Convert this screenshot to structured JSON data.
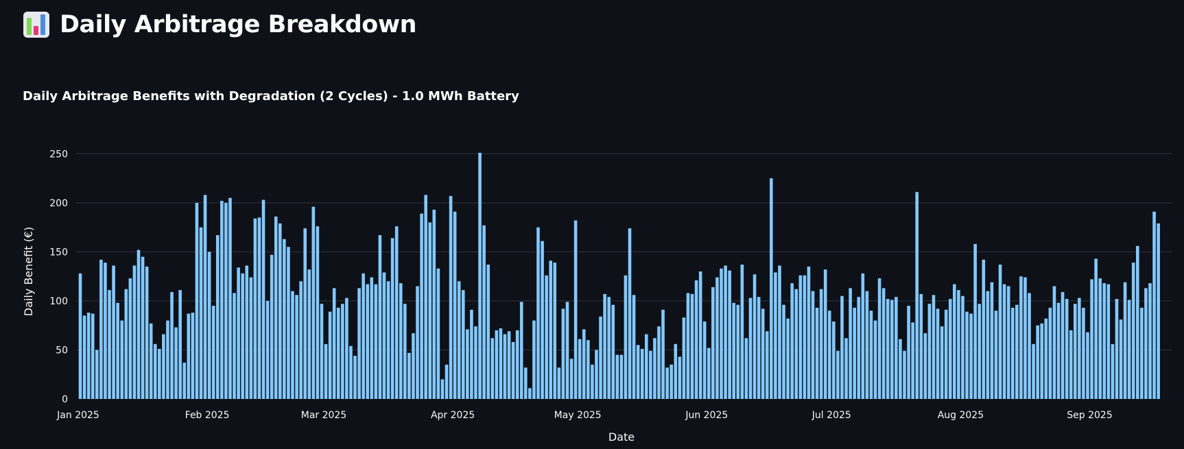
{
  "page": {
    "title": "Daily Arbitrage Breakdown",
    "icon": "bar-chart-icon"
  },
  "colors": {
    "background": "#0e1117",
    "bar": "#83c9ff",
    "grid": "#31333f",
    "text": "#fafafa"
  },
  "chart_data": {
    "type": "bar",
    "title": "Daily Arbitrage Benefits with Degradation (2 Cycles) - 1.0 MWh Battery",
    "xlabel": "Date",
    "ylabel": "Daily Benefit (€)",
    "x_start": "2025-01-01",
    "x_ticks": [
      "Jan 2025",
      "Feb 2025",
      "Mar 2025",
      "Apr 2025",
      "May 2025",
      "Jun 2025",
      "Jul 2025",
      "Aug 2025",
      "Sep 2025"
    ],
    "y_ticks": [
      0,
      50,
      100,
      150,
      200,
      250
    ],
    "ylim": [
      0,
      260
    ],
    "grid": true,
    "legend": "none",
    "values": [
      128,
      85,
      88,
      87,
      50,
      142,
      139,
      111,
      136,
      98,
      80,
      112,
      123,
      136,
      152,
      145,
      135,
      77,
      56,
      51,
      66,
      80,
      109,
      73,
      111,
      37,
      87,
      88,
      200,
      175,
      208,
      150,
      95,
      167,
      202,
      200,
      205,
      108,
      134,
      128,
      136,
      124,
      184,
      185,
      203,
      100,
      147,
      186,
      179,
      163,
      155,
      110,
      106,
      120,
      174,
      132,
      196,
      176,
      97,
      56,
      89,
      113,
      93,
      97,
      103,
      54,
      44,
      113,
      128,
      117,
      124,
      117,
      167,
      129,
      120,
      164,
      176,
      118,
      97,
      47,
      67,
      115,
      189,
      208,
      180,
      193,
      133,
      20,
      35,
      207,
      191,
      120,
      111,
      71,
      91,
      74,
      251,
      177,
      137,
      62,
      70,
      72,
      66,
      69,
      58,
      70,
      99,
      32,
      11,
      80,
      175,
      161,
      126,
      141,
      139,
      32,
      92,
      99,
      41,
      182,
      61,
      71,
      60,
      35,
      50,
      84,
      107,
      104,
      96,
      45,
      45,
      126,
      174,
      106,
      55,
      51,
      66,
      49,
      62,
      74,
      91,
      32,
      35,
      56,
      43,
      83,
      108,
      107,
      121,
      130,
      79,
      52,
      114,
      124,
      133,
      136,
      131,
      98,
      96,
      137,
      62,
      103,
      127,
      104,
      92,
      69,
      225,
      129,
      136,
      96,
      82,
      118,
      112,
      126,
      126,
      135,
      110,
      93,
      112,
      132,
      90,
      79,
      49,
      105,
      62,
      113,
      93,
      104,
      128,
      110,
      90,
      80,
      123,
      113,
      102,
      101,
      104,
      61,
      49,
      95,
      78,
      211,
      107,
      67,
      97,
      106,
      92,
      74,
      91,
      102,
      117,
      111,
      105,
      89,
      87,
      158,
      97,
      142,
      110,
      119,
      90,
      137,
      117,
      115,
      93,
      96,
      125,
      124,
      108,
      56,
      75,
      77,
      82,
      93,
      115,
      98,
      109,
      102,
      70,
      97,
      103,
      93,
      68,
      122,
      143,
      123,
      118,
      117,
      56,
      102,
      81,
      119,
      101,
      139,
      156,
      93,
      113,
      118,
      191,
      179
    ]
  }
}
